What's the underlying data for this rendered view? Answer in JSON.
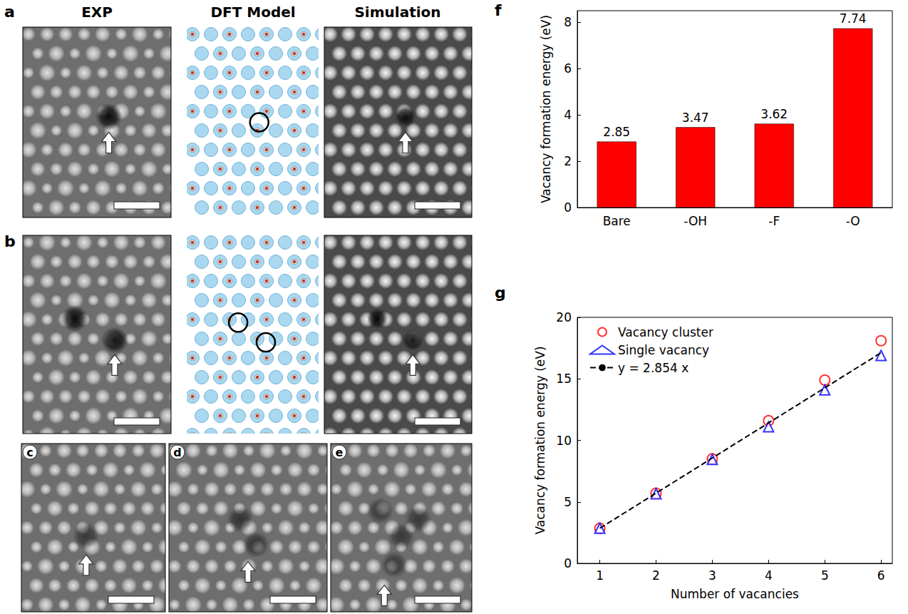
{
  "image_panels": {
    "headers": [
      "EXP",
      "DFT Model",
      "Simulation"
    ],
    "letters": [
      "a",
      "b",
      "c",
      "d",
      "e"
    ]
  },
  "chart_data": [
    {
      "panel": "f",
      "type": "bar",
      "categories": [
        "Bare",
        "-OH",
        "-F",
        "-O"
      ],
      "values": [
        2.85,
        3.47,
        3.62,
        7.74
      ],
      "color": "#ff0000",
      "y_label": "Vacancy formation energy (eV)",
      "ylim": [
        0,
        8.5
      ],
      "yticks": [
        0,
        2,
        4,
        6,
        8
      ],
      "grid": false,
      "data_labels": true
    },
    {
      "panel": "g",
      "type": "scatter",
      "x_label": "Number of vacancies",
      "y_label": "Vacancy formation energy (eV)",
      "x": [
        1,
        2,
        3,
        4,
        5,
        6
      ],
      "series": [
        {
          "name": "Vacancy cluster",
          "color": "#ff0000",
          "marker": "circle-open",
          "values": [
            2.85,
            5.7,
            8.5,
            11.6,
            14.9,
            18.1
          ]
        },
        {
          "name": "Single vacancy",
          "color": "#0000ff",
          "marker": "triangle-open",
          "values": [
            2.85,
            5.65,
            8.45,
            11.1,
            14.1,
            16.9
          ]
        },
        {
          "name": "y = 2.854 x",
          "type": "line",
          "color": "#000000",
          "line_style": "dashed",
          "slope": 2.854,
          "x": [
            1,
            6
          ]
        }
      ],
      "xlim": [
        0.6,
        6.2
      ],
      "xticks": [
        1,
        2,
        3,
        4,
        5,
        6
      ],
      "ylim": [
        0,
        20
      ],
      "yticks": [
        0,
        5,
        10,
        15,
        20
      ],
      "grid": false,
      "legend": "upper left"
    }
  ]
}
